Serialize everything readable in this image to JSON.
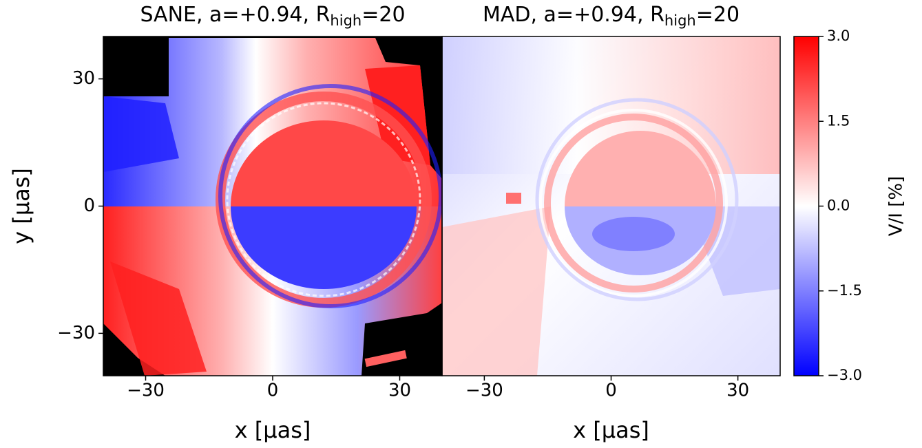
{
  "chart_data": [
    {
      "type": "heatmap",
      "title": [
        "SANE, a=+0.94, R",
        "high",
        "=20"
      ],
      "xlabel": "x [μas]",
      "ylabel": "y [μas]",
      "xlim": [
        -40,
        40
      ],
      "ylim": [
        -40,
        40
      ],
      "xticks": [
        {
          "value": -30,
          "label": "−30"
        },
        0,
        30
      ],
      "yticks": [
        {
          "value": -30,
          "label": "−30"
        },
        0,
        30
      ]
    },
    {
      "type": "heatmap",
      "title": [
        "MAD, a=+0.94, R",
        "high",
        "=20"
      ],
      "xlabel": "x [μas]",
      "xlim": [
        -40,
        40
      ],
      "ylim": [
        -40,
        40
      ],
      "xticks": [
        {
          "value": -30,
          "label": "−30"
        },
        0,
        30
      ]
    },
    {
      "type": "colorbar",
      "label": "V/I [%]",
      "cmap": [
        "#0000ff",
        "#ffffff",
        "#ff0000"
      ],
      "ylim": [
        -3,
        3
      ],
      "yticks": [
        {
          "value": -3,
          "label": "−3.0"
        },
        {
          "value": -1.5,
          "label": "−1.5"
        },
        {
          "value": 0,
          "label": "0.0"
        },
        {
          "value": 1.5,
          "label": "1.5"
        },
        {
          "value": 3,
          "label": "3.0"
        }
      ]
    }
  ]
}
